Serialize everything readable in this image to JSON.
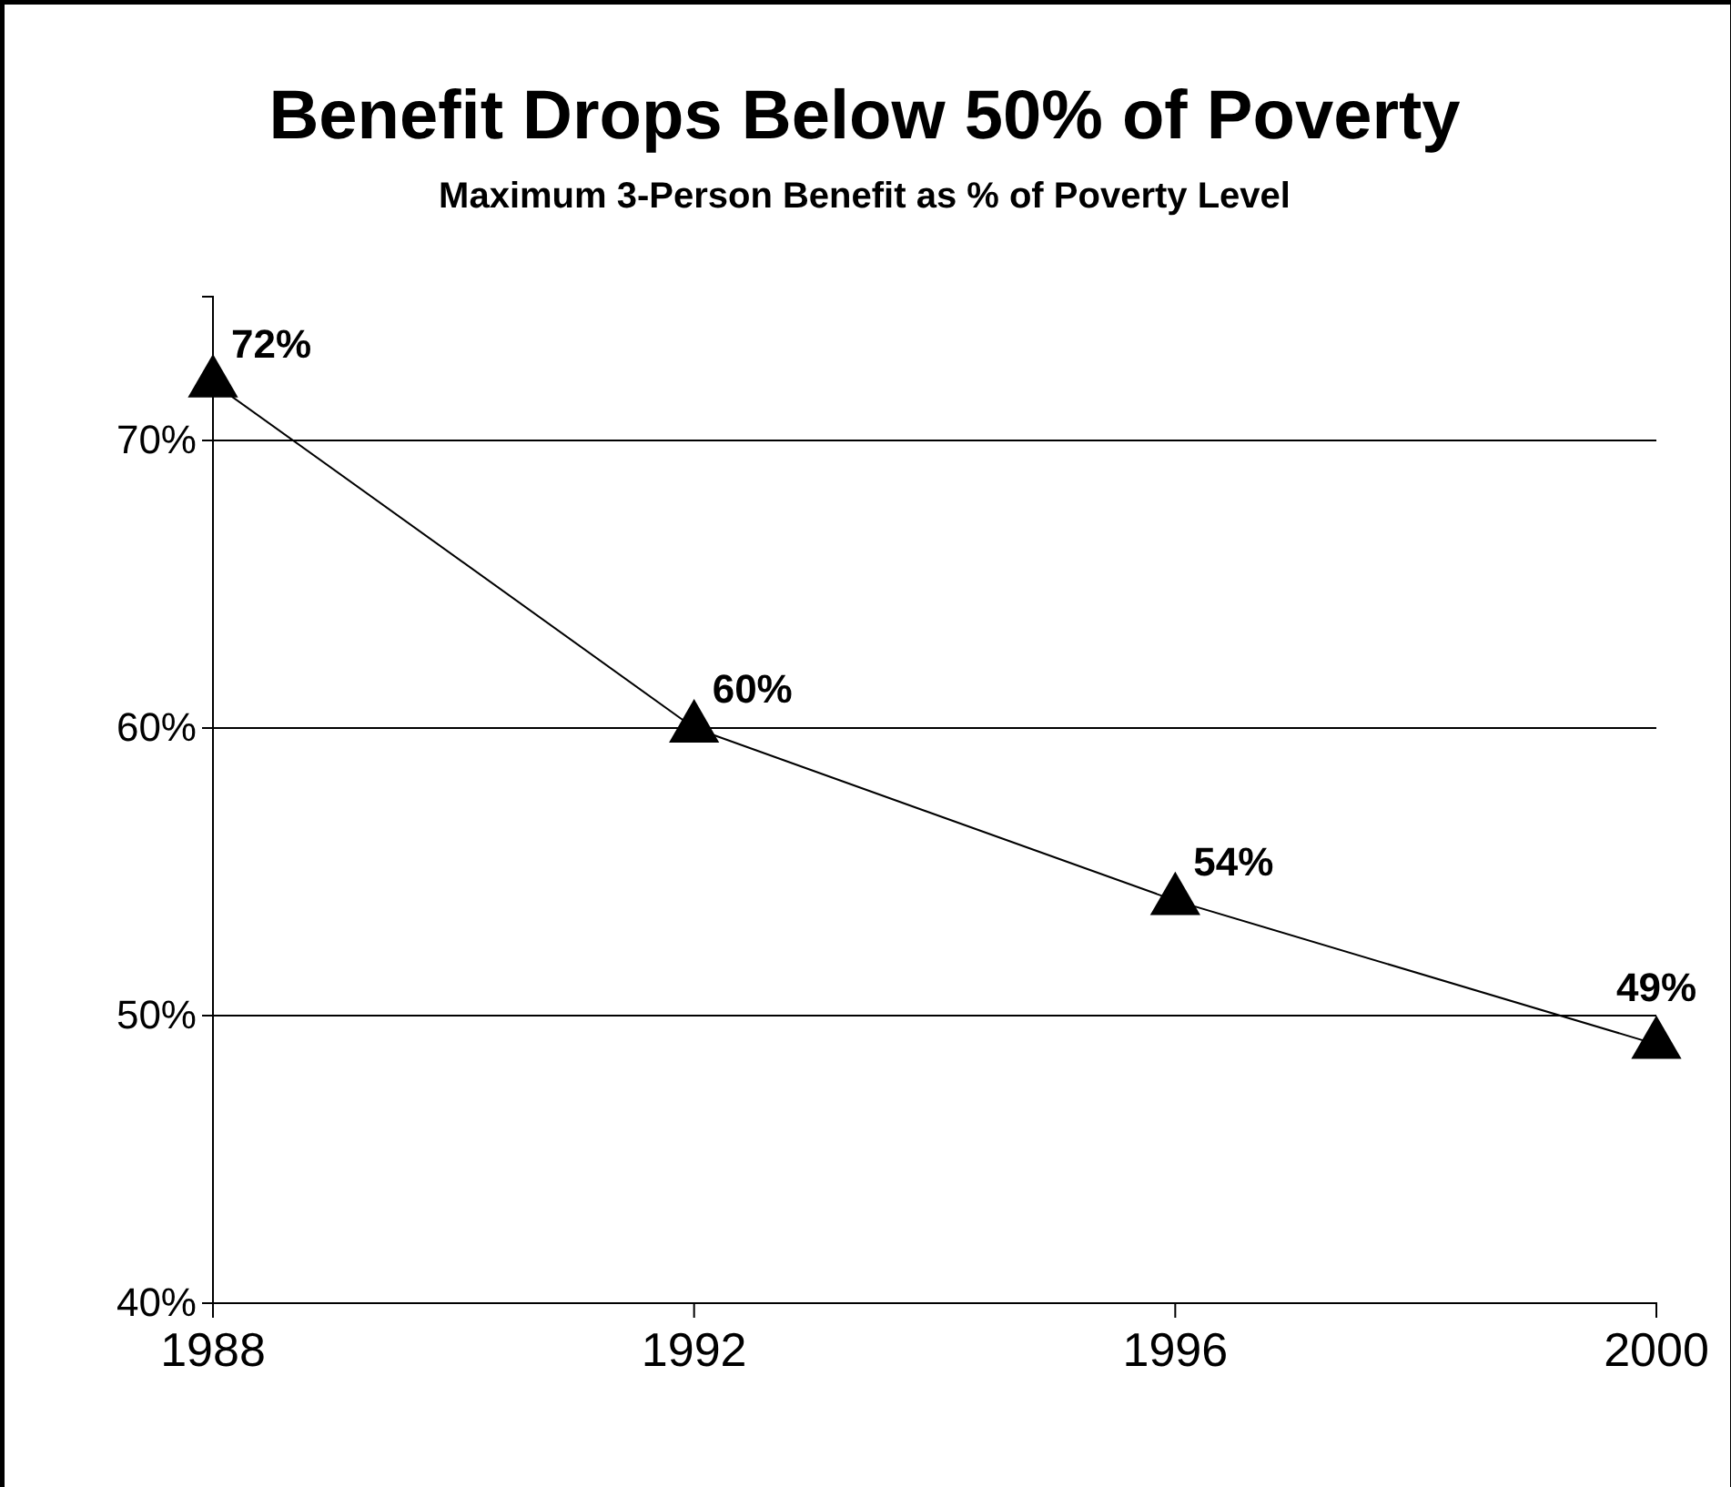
{
  "chart_data": {
    "type": "line",
    "title": "Benefit Drops Below 50% of Poverty",
    "subtitle": "Maximum 3-Person Benefit as % of Poverty Level",
    "x": [
      1988,
      1992,
      1996,
      2000
    ],
    "series": [
      {
        "color": "#000000",
        "values": [
          72,
          60,
          54,
          49
        ],
        "value_labels": [
          "72%",
          "60%",
          "54%",
          "49%"
        ]
      }
    ],
    "xlim": [
      1988,
      2000
    ],
    "xticks": [
      1988,
      1992,
      1996,
      2000
    ],
    "ylim": [
      40,
      75
    ],
    "yticks": [
      {
        "value": 40,
        "label": "40%"
      },
      {
        "value": 50,
        "label": "50%"
      },
      {
        "value": 60,
        "label": "60%"
      },
      {
        "value": 70,
        "label": "70%"
      }
    ],
    "grid": "y",
    "marker": "triangle",
    "line_style": "solid"
  }
}
